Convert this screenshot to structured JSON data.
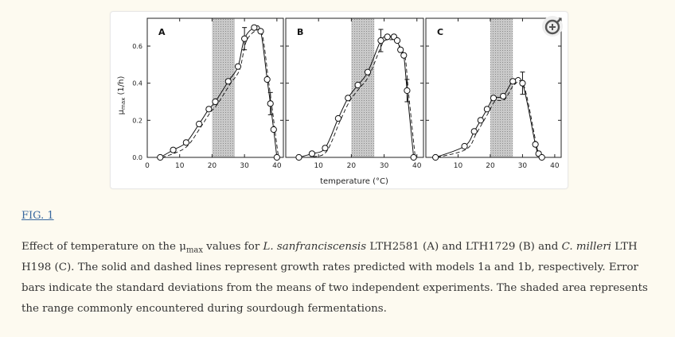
{
  "figure": {
    "panel_labels": [
      "A",
      "B",
      "C"
    ],
    "y_axis_label": "μ",
    "y_axis_label_sub": "max",
    "y_axis_label_unit": " (1/h)",
    "x_axis_label": "temperature (°C)",
    "y_ticks": [
      "0.0",
      "0.2",
      "0.4",
      "0.6"
    ],
    "panel_a_x_ticks": [
      "0",
      "10",
      "20",
      "30",
      "40"
    ],
    "panel_b_x_ticks": [
      "10",
      "20",
      "30",
      "40"
    ],
    "panel_c_x_ticks": [
      "10",
      "20",
      "30",
      "40"
    ]
  },
  "chart_data": [
    {
      "type": "scatter",
      "title": "A",
      "shaded_range": [
        20,
        27
      ],
      "xlim": [
        0,
        42
      ],
      "ylim": [
        0,
        0.75
      ],
      "points": {
        "x": [
          4,
          8,
          12,
          16,
          19,
          21,
          25,
          28,
          30,
          33,
          35,
          37,
          38,
          39,
          40
        ],
        "y": [
          0.0,
          0.04,
          0.08,
          0.18,
          0.26,
          0.3,
          0.41,
          0.49,
          0.64,
          0.7,
          0.68,
          0.42,
          0.29,
          0.15,
          0.0
        ]
      },
      "error_bars": [
        {
          "x": 30,
          "y": 0.64
        },
        {
          "x": 38,
          "y": 0.29
        }
      ]
    },
    {
      "type": "scatter",
      "title": "B",
      "shaded_range": [
        20,
        27
      ],
      "xlim": [
        0,
        42
      ],
      "ylim": [
        0,
        0.75
      ],
      "points": {
        "x": [
          4,
          8,
          12,
          16,
          19,
          22,
          25,
          29,
          31,
          33,
          34,
          35,
          36,
          37,
          39
        ],
        "y": [
          0.0,
          0.02,
          0.05,
          0.21,
          0.32,
          0.39,
          0.46,
          0.63,
          0.65,
          0.65,
          0.63,
          0.58,
          0.55,
          0.36,
          0.0
        ]
      },
      "error_bars": [
        {
          "x": 29,
          "y": 0.63
        },
        {
          "x": 37,
          "y": 0.36
        }
      ]
    },
    {
      "type": "scatter",
      "title": "C",
      "shaded_range": [
        20,
        27
      ],
      "xlim": [
        0,
        42
      ],
      "ylim": [
        0,
        0.75
      ],
      "points": {
        "x": [
          3,
          12,
          15,
          17,
          19,
          21,
          24,
          27,
          30,
          34,
          35,
          36
        ],
        "y": [
          0.0,
          0.06,
          0.14,
          0.2,
          0.26,
          0.32,
          0.33,
          0.41,
          0.4,
          0.07,
          0.02,
          0.0
        ]
      },
      "error_bars": [
        {
          "x": 30,
          "y": 0.4
        }
      ]
    }
  ],
  "link": {
    "label": "FIG. 1"
  },
  "caption": {
    "t1": "Effect of temperature on the μ",
    "t1_sub": "max",
    "t2": " values for ",
    "species1": "L. sanfranciscensis",
    "t3": " LTH2581 (A) and LTH1729 (B) and ",
    "species2": "C. milleri",
    "t4": " LTH H198 (C). The solid and dashed lines represent growth rates predicted with models 1a and 1b, respectively. Error bars indicate the standard deviations from the means of two independent experiments. The shaded area represents the range commonly encountered during sourdough fermentations."
  }
}
